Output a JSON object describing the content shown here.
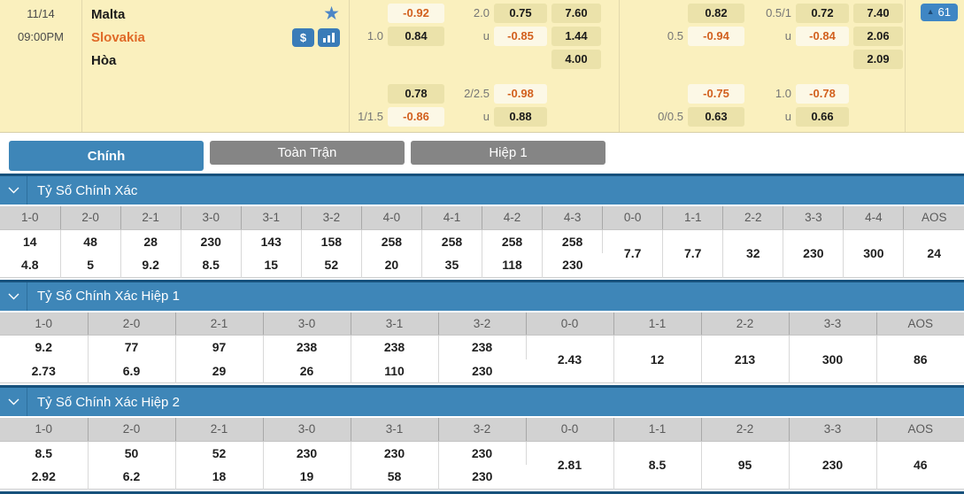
{
  "match": {
    "date": "11/14",
    "time": "09:00PM",
    "home": "Malta",
    "away": "Slovakia",
    "draw": "Hòa",
    "badge_count": "61",
    "favorite_icon": "★",
    "money_icon": "$",
    "triangle_icon": "▲"
  },
  "colors": {
    "panel_bg": "#FAF0BE",
    "cell_positive_bg": "#EBE2AA",
    "cell_negative_bg": "#FCF8E6",
    "negative_text": "#D2601E",
    "accent_blue": "#3E86B8",
    "navy_border": "#17517C",
    "tab_inactive": "#858585",
    "away_team": "#E06A28"
  },
  "odds_groups": [
    {
      "blocks": [
        {
          "hdp": [
            {
              "label": "",
              "value": "-0.92"
            },
            {
              "label": "1.0",
              "value": "0.84"
            }
          ],
          "ou": [
            {
              "label": "2.0",
              "value": "0.75"
            },
            {
              "label": "u",
              "value": "-0.85"
            }
          ],
          "x12": [
            "7.60",
            "1.44",
            "4.00"
          ]
        },
        {
          "hdp": [
            {
              "label": "",
              "value": "0.78"
            },
            {
              "label": "1/1.5",
              "value": "-0.86"
            }
          ],
          "ou": [
            {
              "label": "2/2.5",
              "value": "-0.98"
            },
            {
              "label": "u",
              "value": "0.88"
            }
          ],
          "x12": []
        }
      ]
    },
    {
      "blocks": [
        {
          "hdp": [
            {
              "label": "",
              "value": "0.82"
            },
            {
              "label": "0.5",
              "value": "-0.94"
            }
          ],
          "ou": [
            {
              "label": "0.5/1",
              "value": "0.72"
            },
            {
              "label": "u",
              "value": "-0.84"
            }
          ],
          "x12": [
            "7.40",
            "2.06",
            "2.09"
          ]
        },
        {
          "hdp": [
            {
              "label": "",
              "value": "-0.75"
            },
            {
              "label": "0/0.5",
              "value": "0.63"
            }
          ],
          "ou": [
            {
              "label": "1.0",
              "value": "-0.78"
            },
            {
              "label": "u",
              "value": "0.66"
            }
          ],
          "x12": []
        }
      ]
    }
  ],
  "tabs": [
    {
      "label": "Chính",
      "active": true
    },
    {
      "label": "Toàn Trận",
      "active": false
    },
    {
      "label": "Hiệp 1",
      "active": false
    }
  ],
  "sections": [
    {
      "title": "Tỷ Số Chính Xác",
      "columns": [
        {
          "score": "1-0",
          "values": [
            "14",
            "4.8"
          ]
        },
        {
          "score": "2-0",
          "values": [
            "48",
            "5"
          ]
        },
        {
          "score": "2-1",
          "values": [
            "28",
            "9.2"
          ]
        },
        {
          "score": "3-0",
          "values": [
            "230",
            "8.5"
          ]
        },
        {
          "score": "3-1",
          "values": [
            "143",
            "15"
          ]
        },
        {
          "score": "3-2",
          "values": [
            "158",
            "52"
          ]
        },
        {
          "score": "4-0",
          "values": [
            "258",
            "20"
          ]
        },
        {
          "score": "4-1",
          "values": [
            "258",
            "35"
          ]
        },
        {
          "score": "4-2",
          "values": [
            "258",
            "118"
          ]
        },
        {
          "score": "4-3",
          "values": [
            "258",
            "230"
          ]
        },
        {
          "score": "0-0",
          "values": [
            "7.7"
          ]
        },
        {
          "score": "1-1",
          "values": [
            "7.7"
          ]
        },
        {
          "score": "2-2",
          "values": [
            "32"
          ]
        },
        {
          "score": "3-3",
          "values": [
            "230"
          ]
        },
        {
          "score": "4-4",
          "values": [
            "300"
          ]
        },
        {
          "score": "AOS",
          "values": [
            "24"
          ]
        }
      ]
    },
    {
      "title": "Tỷ Số Chính Xác Hiệp 1",
      "columns": [
        {
          "score": "1-0",
          "values": [
            "9.2",
            "2.73"
          ]
        },
        {
          "score": "2-0",
          "values": [
            "77",
            "6.9"
          ]
        },
        {
          "score": "2-1",
          "values": [
            "97",
            "29"
          ]
        },
        {
          "score": "3-0",
          "values": [
            "238",
            "26"
          ]
        },
        {
          "score": "3-1",
          "values": [
            "238",
            "110"
          ]
        },
        {
          "score": "3-2",
          "values": [
            "238",
            "230"
          ]
        },
        {
          "score": "0-0",
          "values": [
            "2.43"
          ]
        },
        {
          "score": "1-1",
          "values": [
            "12"
          ]
        },
        {
          "score": "2-2",
          "values": [
            "213"
          ]
        },
        {
          "score": "3-3",
          "values": [
            "300"
          ]
        },
        {
          "score": "AOS",
          "values": [
            "86"
          ]
        }
      ]
    },
    {
      "title": "Tỷ Số Chính Xác Hiệp 2",
      "columns": [
        {
          "score": "1-0",
          "values": [
            "8.5",
            "2.92"
          ]
        },
        {
          "score": "2-0",
          "values": [
            "50",
            "6.2"
          ]
        },
        {
          "score": "2-1",
          "values": [
            "52",
            "18"
          ]
        },
        {
          "score": "3-0",
          "values": [
            "230",
            "19"
          ]
        },
        {
          "score": "3-1",
          "values": [
            "230",
            "58"
          ]
        },
        {
          "score": "3-2",
          "values": [
            "230",
            "230"
          ]
        },
        {
          "score": "0-0",
          "values": [
            "2.81"
          ]
        },
        {
          "score": "1-1",
          "values": [
            "8.5"
          ]
        },
        {
          "score": "2-2",
          "values": [
            "95"
          ]
        },
        {
          "score": "3-3",
          "values": [
            "230"
          ]
        },
        {
          "score": "AOS",
          "values": [
            "46"
          ]
        }
      ]
    }
  ]
}
